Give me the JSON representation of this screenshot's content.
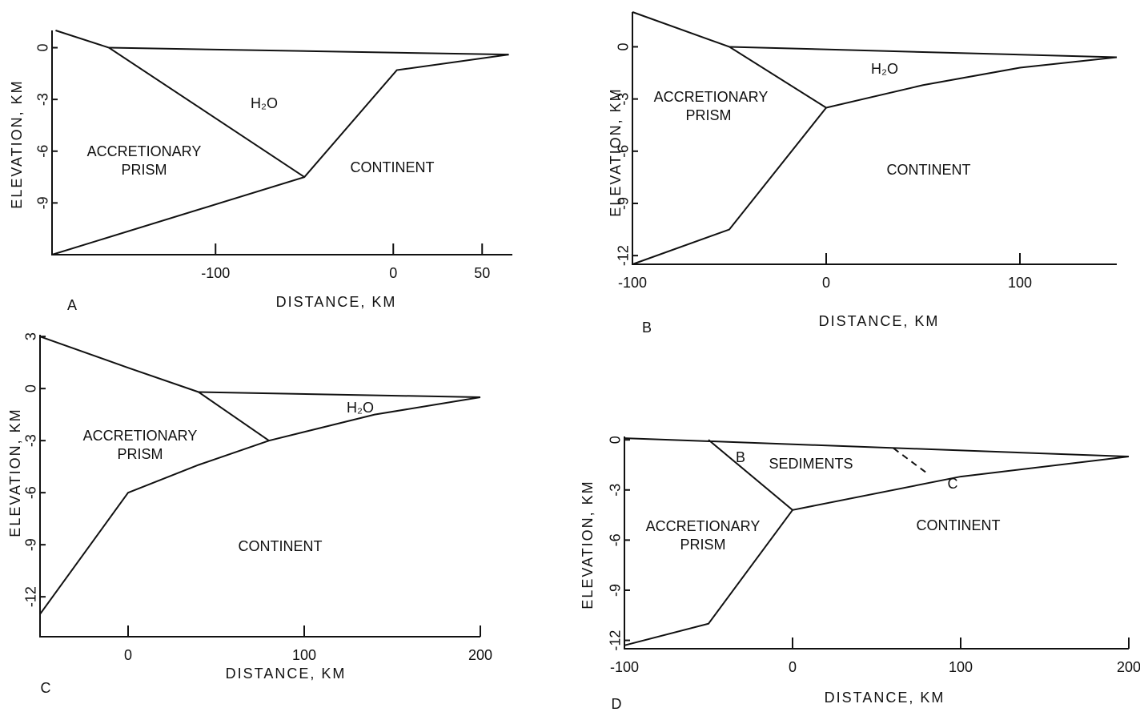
{
  "chart_data": [
    {
      "type": "line",
      "panel": "A",
      "xlabel": "DISTANCE, KM",
      "ylabel": "ELEVATION, KM",
      "xlim": [
        -192,
        67
      ],
      "ylim": [
        -12,
        1
      ],
      "xticks": [
        -100,
        0,
        50
      ],
      "yticks": [
        0,
        -3,
        -6,
        -9
      ],
      "color": "#111",
      "series": [
        {
          "x": [
            -160,
            65
          ],
          "values": [
            0,
            -0.4
          ]
        },
        {
          "x": [
            -190,
            -160,
            -50
          ],
          "values": [
            1,
            0,
            -7.5
          ]
        },
        {
          "x": [
            -192,
            -50,
            2,
            65
          ],
          "values": [
            -12,
            -7.5,
            -1.3,
            -0.4
          ]
        }
      ],
      "annotations": [
        "H₂O",
        "ACCRETIONARY",
        "PRISM",
        "CONTINENT"
      ]
    },
    {
      "type": "line",
      "panel": "B",
      "xlabel": "DISTANCE, KM",
      "ylabel": "ELEVATION, KM",
      "xlim": [
        -100,
        150
      ],
      "ylim": [
        -12.5,
        2
      ],
      "xticks": [
        -100,
        0,
        100
      ],
      "yticks": [
        0,
        -3,
        -6,
        -9,
        -12
      ],
      "color": "#111",
      "series": [
        {
          "x": [
            -50,
            150
          ],
          "values": [
            0,
            -0.6
          ]
        },
        {
          "x": [
            -100,
            -50,
            0
          ],
          "values": [
            2,
            0,
            -3.5
          ]
        },
        {
          "x": [
            0,
            50,
            100,
            150
          ],
          "values": [
            -3.5,
            -2.2,
            -1.2,
            -0.6
          ]
        },
        {
          "x": [
            -100,
            -50,
            0
          ],
          "values": [
            -12.5,
            -10.5,
            -3.5
          ]
        }
      ],
      "annotations": [
        "H₂O",
        "ACCRETIONARY",
        "PRISM",
        "CONTINENT"
      ]
    },
    {
      "type": "line",
      "panel": "C",
      "xlabel": "DISTANCE, KM",
      "ylabel": "ELEVATION, KM",
      "xlim": [
        -50,
        200
      ],
      "ylim": [
        -14.3,
        3.1
      ],
      "xticks": [
        0,
        100,
        200
      ],
      "yticks": [
        3,
        0,
        -3,
        -6,
        -9,
        -12
      ],
      "color": "#111",
      "series": [
        {
          "x": [
            -50,
            0,
            40
          ],
          "values": [
            3,
            1.2,
            -0.2
          ]
        },
        {
          "x": [
            40,
            200
          ],
          "values": [
            -0.2,
            -0.5
          ]
        },
        {
          "x": [
            40,
            80
          ],
          "values": [
            -0.2,
            -3
          ]
        },
        {
          "x": [
            -50,
            0,
            40,
            80,
            140,
            200
          ],
          "values": [
            -13,
            -6,
            -4.4,
            -3,
            -1.5,
            -0.5
          ]
        }
      ],
      "annotations": [
        "H₂O",
        "ACCRETIONARY",
        "PRISM",
        "CONTINENT"
      ]
    },
    {
      "type": "line",
      "panel": "D",
      "xlabel": "DISTANCE, KM",
      "ylabel": "ELEVATION, KM",
      "xlim": [
        -100,
        200
      ],
      "ylim": [
        -12.5,
        0.2
      ],
      "xticks": [
        -100,
        0,
        100,
        200
      ],
      "yticks": [
        0,
        -3,
        -6,
        -9,
        -12
      ],
      "color": "#111",
      "series": [
        {
          "x": [
            -100,
            200
          ],
          "values": [
            0.1,
            -1
          ]
        },
        {
          "x": [
            -50,
            0
          ],
          "values": [
            0,
            -4.2
          ]
        },
        {
          "x": [
            0,
            100,
            200
          ],
          "values": [
            -4.2,
            -2.2,
            -1
          ]
        },
        {
          "x": [
            -100,
            -50,
            0
          ],
          "values": [
            -12.3,
            -11,
            -4.2
          ]
        },
        {
          "x": [
            60,
            80
          ],
          "values": [
            -0.5,
            -2
          ],
          "dashed": true
        }
      ],
      "annotations": [
        "B",
        "SEDIMENTS",
        "C",
        "ACCRETIONARY",
        "PRISM",
        "CONTINENT"
      ]
    }
  ]
}
